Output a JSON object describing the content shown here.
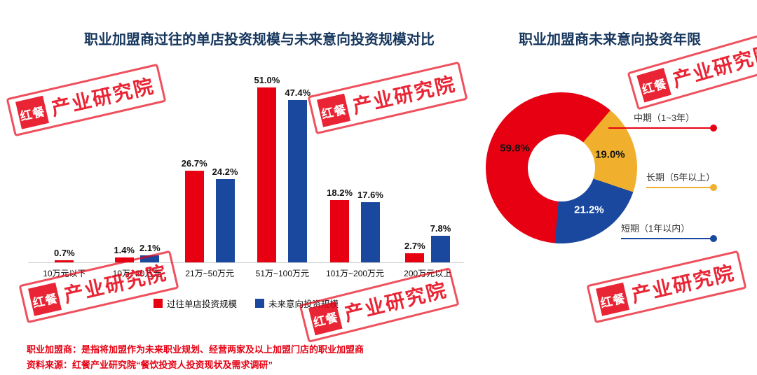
{
  "chart_data": [
    {
      "type": "bar",
      "title": "职业加盟商过往的单店投资规模与未来意向投资规模对比",
      "categories": [
        "10万元以下",
        "10万~20万元",
        "21万~50万元",
        "51万~100万元",
        "101万~200万元",
        "200万元以上"
      ],
      "series": [
        {
          "name": "过往单店投资规模",
          "color": "#e60012",
          "values": [
            0.7,
            1.4,
            26.7,
            51.0,
            18.2,
            2.7
          ]
        },
        {
          "name": "未来意向投资规模",
          "color": "#1a489e",
          "values": [
            null,
            2.1,
            24.2,
            47.4,
            17.6,
            7.8
          ]
        }
      ],
      "value_suffix": "%",
      "ylim": [
        0,
        55
      ],
      "grid": false,
      "legend_position": "bottom"
    },
    {
      "type": "pie",
      "donut": true,
      "title": "职业加盟商未来意向投资年限",
      "slices": [
        {
          "label": "中期（1~3年）",
          "value": 59.8,
          "color": "#e60012",
          "value_color": "#111111"
        },
        {
          "label": "长期（5年以上）",
          "value": 19.0,
          "color": "#f0b02e",
          "value_color": "#111111"
        },
        {
          "label": "短期（1年以内）",
          "value": 21.2,
          "color": "#1a489e",
          "value_color": "#ffffff"
        }
      ],
      "start_angle_deg": 185,
      "value_suffix": "%",
      "legend_position": "right-callouts"
    }
  ],
  "watermark": {
    "logo": "红餐",
    "text": "产业研究院"
  },
  "notes": [
    "职业加盟商：是指将加盟作为未来职业规划、经营两家及以上加盟门店的职业加盟商",
    "资料来源：红餐产业研究院“餐饮投资人投资现状及需求调研”"
  ]
}
